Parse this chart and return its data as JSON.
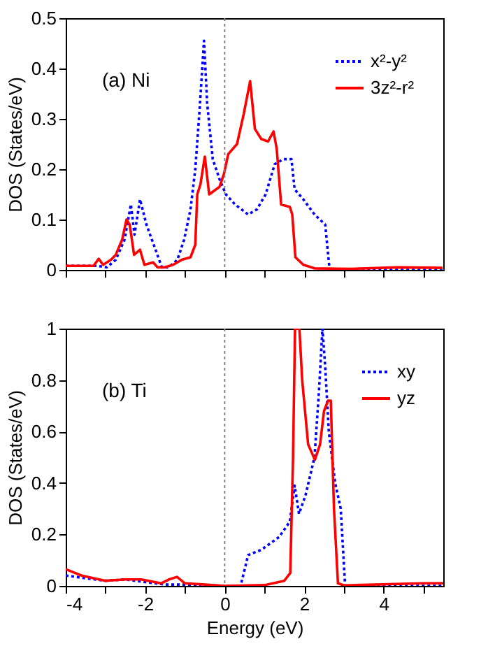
{
  "chart_data": [
    {
      "type": "line",
      "ylabel": "DOS (States/eV)",
      "annotations": [
        "(a) Ni"
      ],
      "xlim": [
        -4,
        5.5
      ],
      "ylim": [
        0,
        0.5
      ],
      "xticks": [
        {
          "value": -4,
          "label": null
        },
        {
          "value": -3,
          "label": null
        },
        {
          "value": -2,
          "label": null
        },
        {
          "value": -1,
          "label": null
        },
        {
          "value": 0,
          "label": null
        },
        {
          "value": 1,
          "label": null
        },
        {
          "value": 2,
          "label": null
        },
        {
          "value": 3,
          "label": null
        },
        {
          "value": 4,
          "label": null
        },
        {
          "value": 5,
          "label": null
        }
      ],
      "yticks": [
        0,
        0.1,
        0.2,
        0.3,
        0.4,
        0.5
      ],
      "tick_labels": "y",
      "grid": false,
      "legend": "top right",
      "ref_lines": [
        {
          "axis": "x",
          "value": 0,
          "color": "#808080",
          "line_style": "dotted"
        }
      ],
      "series": [
        {
          "name": "x²-y²",
          "color": "#0000ff",
          "line_style": "dotted",
          "x": [
            -4,
            -3.2,
            -2.97,
            -2.74,
            -2.52,
            -2.36,
            -2.27,
            -2.13,
            -1.97,
            -1.74,
            -1.58,
            -1.41,
            -1.19,
            -1.02,
            -0.86,
            -0.74,
            -0.63,
            -0.52,
            -0.44,
            -0.3,
            -0.13,
            0.03,
            0.26,
            0.59,
            0.81,
            1.03,
            1.26,
            1.48,
            1.68,
            1.76,
            1.98,
            2.26,
            2.53,
            2.64,
            5.48
          ],
          "values": [
            0.008,
            0.008,
            0.005,
            0.02,
            0.06,
            0.13,
            0.07,
            0.14,
            0.09,
            0.04,
            0.005,
            0.005,
            0.02,
            0.06,
            0.12,
            0.2,
            0.32,
            0.455,
            0.33,
            0.22,
            0.18,
            0.15,
            0.13,
            0.11,
            0.12,
            0.15,
            0.21,
            0.22,
            0.22,
            0.16,
            0.14,
            0.11,
            0.09,
            0.0,
            0.0
          ]
        },
        {
          "name": "3z²-r²",
          "color": "#ff0000",
          "line_style": "solid",
          "x": [
            -4,
            -3.3,
            -3.17,
            -3.06,
            -2.86,
            -2.74,
            -2.58,
            -2.47,
            -2.39,
            -2.28,
            -2.13,
            -2.02,
            -1.8,
            -1.69,
            -1.52,
            -1.3,
            -1.08,
            -0.86,
            -0.74,
            -0.69,
            -0.61,
            -0.5,
            -0.39,
            -0.13,
            -0.02,
            0.09,
            0.31,
            0.48,
            0.64,
            0.76,
            0.92,
            1.09,
            1.23,
            1.31,
            1.42,
            1.64,
            1.7,
            1.78,
            1.98,
            2.26,
            3.14,
            4.37,
            5.48
          ],
          "values": [
            0.008,
            0.008,
            0.022,
            0.01,
            0.02,
            0.03,
            0.06,
            0.1,
            0.09,
            0.03,
            0.04,
            0.01,
            0.015,
            0.005,
            0.005,
            0.01,
            0.02,
            0.025,
            0.05,
            0.15,
            0.17,
            0.225,
            0.15,
            0.165,
            0.19,
            0.23,
            0.25,
            0.31,
            0.375,
            0.28,
            0.26,
            0.255,
            0.275,
            0.24,
            0.13,
            0.125,
            0.11,
            0.025,
            0.01,
            0.003,
            0.002,
            0.005,
            0.004
          ]
        }
      ]
    },
    {
      "type": "line",
      "xlabel": "Energy (eV)",
      "ylabel": "DOS (States/eV)",
      "annotations": [
        "(b) Ti"
      ],
      "xlim": [
        -4,
        5.5
      ],
      "ylim": [
        0,
        1
      ],
      "xticks": [
        -4,
        {
          "value": -3,
          "label": null
        },
        -2,
        {
          "value": -1,
          "label": null
        },
        0,
        {
          "value": 1,
          "label": null
        },
        2,
        {
          "value": 3,
          "label": null
        },
        4,
        {
          "value": 5,
          "label": null
        }
      ],
      "yticks": [
        0,
        0.2,
        0.4,
        0.6,
        0.8,
        1
      ],
      "grid": false,
      "legend": "top right",
      "ref_lines": [
        {
          "axis": "x",
          "value": 0,
          "color": "#808080",
          "line_style": "dotted"
        }
      ],
      "series": [
        {
          "name": "xy",
          "color": "#0000ff",
          "line_style": "dotted",
          "x": [
            -4,
            -3.5,
            -3,
            -2.5,
            -2,
            -1.5,
            -1,
            0,
            0.4,
            0.48,
            0.59,
            0.92,
            1.37,
            1.64,
            1.76,
            1.87,
            2.03,
            2.26,
            2.37,
            2.46,
            2.53,
            2.62,
            2.78,
            2.92,
            3.03,
            5.5
          ],
          "values": [
            0.04,
            0.03,
            0.02,
            0.025,
            0.015,
            0.005,
            0.005,
            0.0,
            0.0,
            0.05,
            0.12,
            0.14,
            0.19,
            0.25,
            0.39,
            0.28,
            0.35,
            0.5,
            0.75,
            1.0,
            0.85,
            0.6,
            0.4,
            0.3,
            0.0,
            0.0
          ]
        },
        {
          "name": "yz",
          "color": "#ff0000",
          "line_style": "solid",
          "x": [
            -4,
            -3.6,
            -3,
            -2.5,
            -2.1,
            -1.6,
            -1.4,
            -1.2,
            -1.0,
            -0.5,
            0,
            1.0,
            1.5,
            1.65,
            1.72,
            1.77,
            1.88,
            1.95,
            2.1,
            2.27,
            2.4,
            2.5,
            2.6,
            2.67,
            2.75,
            2.85,
            3.0,
            5.0,
            5.5
          ],
          "values": [
            0.065,
            0.04,
            0.02,
            0.025,
            0.025,
            0.01,
            0.025,
            0.035,
            0.01,
            0.005,
            0.0,
            0.003,
            0.02,
            0.05,
            0.5,
            1.0,
            1.0,
            0.8,
            0.55,
            0.49,
            0.55,
            0.68,
            0.72,
            0.72,
            0.3,
            0.01,
            0.002,
            0.01,
            0.01
          ]
        }
      ]
    }
  ]
}
